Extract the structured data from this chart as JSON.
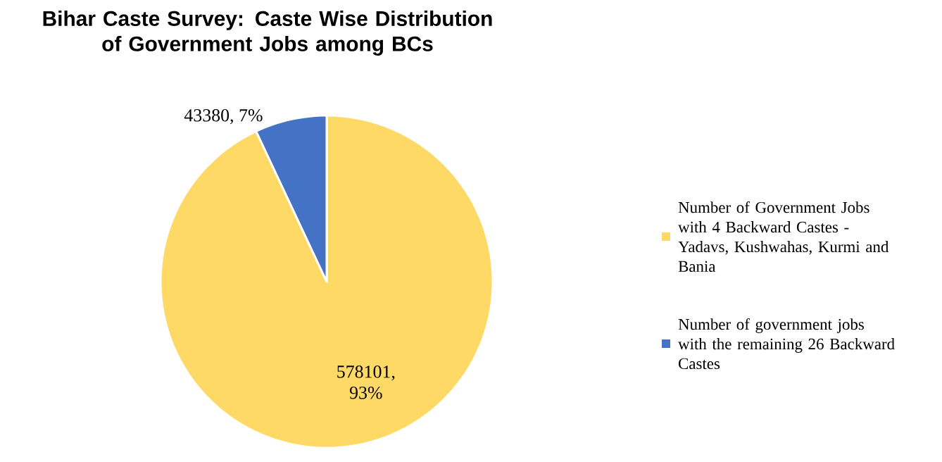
{
  "chart_data": {
    "type": "pie",
    "title": "Bihar Caste Survey: Caste Wise Distribution of Government Jobs among BCs",
    "categories": [
      "Number of Government Jobs with 4 Backward Castes - Yadavs, Kushwahas, Kurmi and  Bania",
      "Number of government jobs with the remaining 26 Backward Castes"
    ],
    "values": [
      578101,
      43380
    ],
    "colors": [
      "#ffd966",
      "#4472c4"
    ],
    "value_labels": [
      "578101, 93%",
      "43380, 7%"
    ],
    "legend": "right"
  }
}
